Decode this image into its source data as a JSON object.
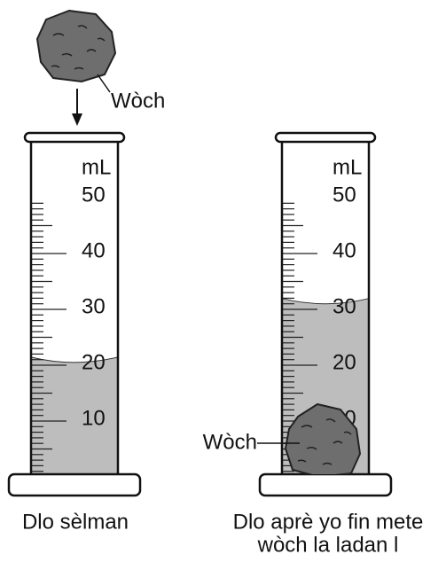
{
  "falling_rock_label": "Wòch",
  "cylinders": [
    {
      "unit": "mL",
      "scale": [
        "50",
        "40",
        "30",
        "20",
        "10"
      ],
      "caption": [
        "Dlo sèlman"
      ]
    },
    {
      "unit": "mL",
      "scale": [
        "50",
        "40",
        "30",
        "20",
        "10"
      ],
      "rock_label": "Wòch",
      "caption": [
        "Dlo aprè yo fin mete",
        "wòch la ladan l"
      ]
    }
  ]
}
